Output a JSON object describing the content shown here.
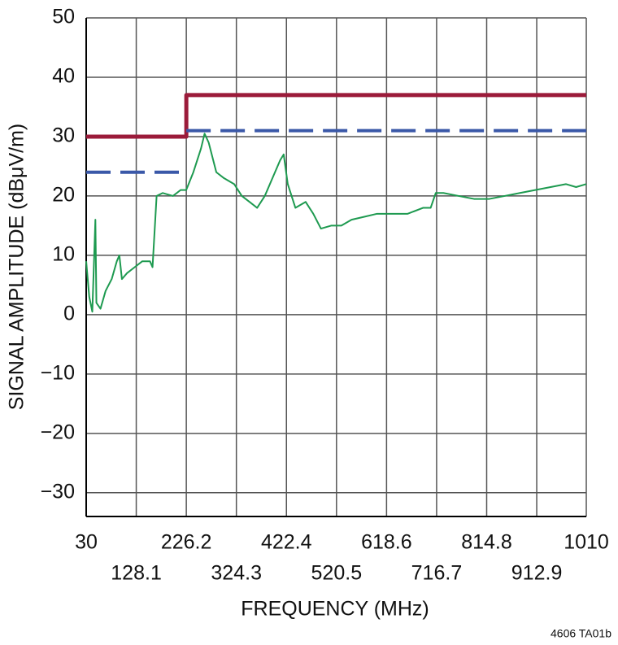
{
  "chart_data": {
    "type": "line",
    "xlabel": "FREQUENCY (MHz)",
    "ylabel": "SIGNAL AMPLITUDE (dBμV/m)",
    "note": "4606 TA01b",
    "xlim": [
      30,
      1010
    ],
    "xticks": [
      30,
      128.1,
      226.2,
      324.3,
      422.4,
      520.5,
      618.6,
      716.7,
      814.8,
      912.9,
      1010
    ],
    "ylim": [
      -34,
      50
    ],
    "yticks": [
      {
        "value": -30,
        "label": "−30"
      },
      {
        "value": -20,
        "label": "−20"
      },
      {
        "value": -10,
        "label": "−10"
      },
      0,
      10,
      20,
      30,
      40,
      50
    ],
    "grid": true,
    "series": [
      {
        "color": "#9b1b3a",
        "width": 5,
        "dash": false,
        "x": [
          30,
          226.2,
          226.2,
          1010
        ],
        "values": [
          30,
          30,
          37,
          37
        ]
      },
      {
        "color": "#3a58a8",
        "width": 4,
        "dash": true,
        "x": [
          30,
          226.2,
          226.2,
          226.2,
          1010
        ],
        "values": [
          24,
          24,
          null,
          31,
          31
        ]
      },
      {
        "color": "#1e9a50",
        "width": 2,
        "dash": false,
        "x": [
          30,
          36,
          42,
          48,
          50,
          58,
          68,
          80,
          90,
          95,
          100,
          110,
          125,
          140,
          155,
          160,
          168,
          180,
          200,
          215,
          226,
          240,
          255,
          262,
          270,
          285,
          300,
          320,
          335,
          350,
          365,
          380,
          395,
          410,
          417,
          425,
          440,
          460,
          475,
          490,
          510,
          530,
          550,
          575,
          600,
          630,
          660,
          690,
          705,
          715,
          730,
          760,
          790,
          820,
          850,
          880,
          910,
          940,
          970,
          990,
          1010
        ],
        "values": [
          9,
          3,
          0.5,
          16,
          2,
          1,
          4,
          6,
          9,
          10,
          6,
          7,
          8,
          9,
          9,
          8,
          20,
          20.5,
          20,
          21,
          21,
          24,
          28,
          30.5,
          29,
          24,
          23,
          22,
          20,
          19,
          18,
          20,
          23,
          26,
          27,
          22,
          18,
          19,
          17,
          14.5,
          15,
          15,
          16,
          16.5,
          17,
          17,
          17,
          18,
          18,
          20.5,
          20.5,
          20,
          19.5,
          19.5,
          20,
          20.5,
          21,
          21.5,
          22,
          21.5,
          22
        ]
      }
    ]
  }
}
